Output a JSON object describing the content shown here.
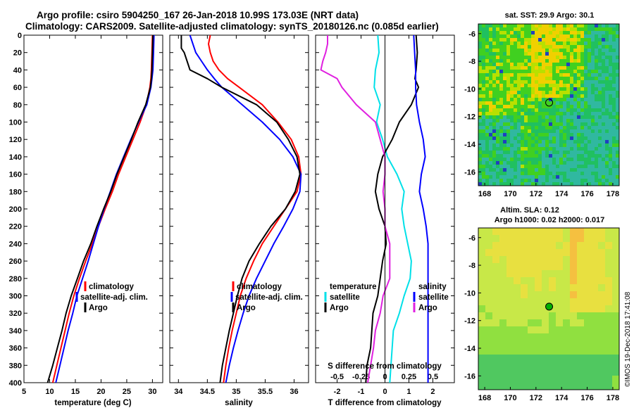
{
  "header": {
    "title_line1": "Argo profile: csiro 5904250_167 26-Jan-2018 10.99S 173.03E (NRT data)",
    "title_line2": "Climatology: CARS2009. Satellite-adjusted climatology: synTS_20180126.nc (0.085d earlier)"
  },
  "colors": {
    "climatology": "#ff0000",
    "satellite": "#0000ff",
    "argo": "#000000",
    "t_difference": "#00e0e8",
    "s_difference": "#e020e0",
    "marker": "#00b000"
  },
  "chart_data": [
    {
      "type": "line",
      "id": "temperature",
      "xlabel": "temperature (deg C)",
      "ylabel": "",
      "xlim": [
        5,
        32
      ],
      "ylim": [
        400,
        0
      ],
      "xticks": [
        "5",
        "10",
        "15",
        "20",
        "25",
        "30"
      ],
      "yticks": [
        "0",
        "20",
        "40",
        "60",
        "80",
        "100",
        "120",
        "140",
        "160",
        "180",
        "200",
        "220",
        "240",
        "260",
        "280",
        "300",
        "320",
        "340",
        "360",
        "380",
        "400"
      ],
      "series": [
        {
          "name": "climatology",
          "color": "#ff0000",
          "depth": [
            0,
            20,
            40,
            50,
            60,
            80,
            100,
            120,
            140,
            160,
            180,
            200,
            220,
            240,
            260,
            280,
            300,
            320,
            340,
            360,
            380,
            400
          ],
          "values": [
            30.0,
            29.9,
            29.8,
            29.7,
            29.5,
            28.8,
            27.6,
            26.2,
            24.8,
            23.4,
            22.2,
            20.8,
            19.5,
            18.3,
            17.0,
            15.8,
            14.7,
            13.8,
            13.0,
            12.2,
            11.4,
            10.6
          ]
        },
        {
          "name": "satellite-adj. clim.",
          "color": "#0000ff",
          "depth": [
            0,
            20,
            40,
            50,
            60,
            80,
            100,
            120,
            140,
            160,
            180,
            200,
            220,
            240,
            260,
            280,
            300,
            320,
            340,
            360,
            380,
            400
          ],
          "values": [
            30.3,
            30.2,
            30.1,
            29.9,
            29.7,
            28.9,
            27.3,
            25.8,
            24.4,
            23.0,
            21.8,
            20.6,
            19.5,
            18.5,
            17.5,
            16.4,
            15.3,
            14.5,
            13.6,
            12.8,
            12.0,
            11.2
          ]
        },
        {
          "name": "Argo",
          "color": "#000000",
          "depth": [
            0,
            20,
            40,
            50,
            60,
            80,
            100,
            120,
            140,
            160,
            180,
            200,
            220,
            240,
            260,
            280,
            300,
            320,
            340,
            360,
            380,
            400
          ],
          "values": [
            30.1,
            30.0,
            29.9,
            29.8,
            29.6,
            28.7,
            27.2,
            25.9,
            24.5,
            23.1,
            21.9,
            20.5,
            19.2,
            18.0,
            16.6,
            15.4,
            14.2,
            13.2,
            12.4,
            11.5,
            10.6,
            9.6
          ]
        }
      ],
      "legend": [
        "climatology",
        "satellite-adj. clim.",
        "Argo"
      ]
    },
    {
      "type": "line",
      "id": "salinity",
      "xlabel": "salinity",
      "ylabel": "",
      "xlim": [
        33.85,
        36.25
      ],
      "ylim": [
        400,
        0
      ],
      "xticks": [
        "34",
        "34.5",
        "35",
        "35.5",
        "36"
      ],
      "series": [
        {
          "name": "climatology",
          "color": "#ff0000",
          "depth": [
            0,
            10,
            20,
            30,
            40,
            50,
            60,
            80,
            100,
            120,
            140,
            160,
            180,
            200,
            220,
            240,
            260,
            280,
            300,
            320,
            340,
            360,
            380,
            400
          ],
          "values": [
            34.55,
            34.52,
            34.55,
            34.6,
            34.7,
            34.85,
            35.05,
            35.45,
            35.72,
            35.95,
            36.08,
            36.12,
            36.05,
            35.85,
            35.65,
            35.45,
            35.3,
            35.17,
            35.07,
            35.0,
            34.93,
            34.87,
            34.82,
            34.78
          ]
        },
        {
          "name": "satellite-adj. clim.",
          "color": "#0000ff",
          "depth": [
            0,
            10,
            20,
            30,
            40,
            50,
            60,
            80,
            100,
            120,
            140,
            160,
            180,
            200,
            220,
            240,
            260,
            280,
            300,
            320,
            340,
            360,
            380,
            400
          ],
          "values": [
            34.2,
            34.25,
            34.3,
            34.4,
            34.5,
            34.62,
            34.75,
            35.1,
            35.45,
            35.75,
            35.98,
            36.12,
            36.1,
            35.98,
            35.82,
            35.65,
            35.5,
            35.35,
            35.22,
            35.12,
            35.03,
            34.95,
            34.88,
            34.82
          ]
        },
        {
          "name": "Argo",
          "color": "#000000",
          "depth": [
            0,
            15,
            20,
            30,
            40,
            50,
            60,
            80,
            100,
            120,
            140,
            160,
            180,
            200,
            220,
            240,
            260,
            280,
            300,
            320,
            340,
            360,
            380,
            400
          ],
          "values": [
            34.05,
            34.05,
            34.1,
            34.15,
            34.2,
            34.5,
            34.75,
            35.35,
            35.7,
            35.9,
            36.05,
            36.1,
            36.02,
            35.85,
            35.6,
            35.4,
            35.22,
            35.1,
            35.02,
            34.95,
            34.88,
            34.82,
            34.76,
            34.72
          ]
        }
      ],
      "legend": [
        "climatology",
        "satellite-adj. clim.",
        "Argo"
      ]
    },
    {
      "type": "line",
      "id": "differences",
      "xlabel": "T difference from climatology",
      "top_label": "S difference from climatology",
      "ylabel": "",
      "xlim": [
        -2.9,
        2.9
      ],
      "s_xlim": [
        -0.725,
        0.725
      ],
      "ylim": [
        400,
        0
      ],
      "xticks": [
        "-2",
        "-1",
        "0",
        "1",
        "2"
      ],
      "s_xticks": [
        "-0.5",
        "-0.25",
        "0",
        "0.25",
        "0.5"
      ],
      "series": [
        {
          "name": "temperature satellite",
          "color": "#00e0e8",
          "kind": "T",
          "depth": [
            0,
            20,
            40,
            60,
            80,
            100,
            120,
            140,
            160,
            180,
            200,
            220,
            240,
            260,
            280,
            300,
            320,
            340,
            360,
            380,
            400
          ],
          "values": [
            -0.3,
            -0.25,
            -0.4,
            -0.45,
            -0.2,
            -0.35,
            -0.1,
            0.1,
            0.5,
            0.8,
            0.7,
            0.8,
            0.95,
            1.1,
            1.05,
            0.8,
            0.6,
            0.35,
            0.3,
            0.25,
            0.2
          ]
        },
        {
          "name": "temperature Argo",
          "color": "#000000",
          "kind": "T",
          "depth": [
            0,
            20,
            40,
            50,
            60,
            80,
            100,
            120,
            140,
            160,
            180,
            200,
            220,
            240,
            260,
            280,
            300,
            320,
            340,
            360,
            380,
            400
          ],
          "values": [
            1.3,
            1.35,
            1.3,
            1.25,
            1.4,
            1.1,
            0.6,
            0.3,
            -0.1,
            -0.3,
            -0.4,
            -0.25,
            0.0,
            0.05,
            -0.1,
            -0.2,
            -0.3,
            -0.5,
            -0.55,
            -0.6,
            -0.75,
            -0.8
          ]
        },
        {
          "name": "salinity satellite",
          "color": "#0000ff",
          "kind": "S",
          "depth": [
            0,
            20,
            40,
            60,
            80,
            100,
            120,
            140,
            160,
            180,
            200,
            220,
            240,
            260,
            280,
            300,
            320,
            340,
            360,
            380,
            400
          ],
          "values": [
            0.3,
            0.31,
            0.32,
            0.32,
            0.33,
            0.36,
            0.4,
            0.42,
            0.38,
            0.36,
            0.4,
            0.43,
            0.45,
            0.45,
            0.45,
            0.45,
            0.45,
            0.45,
            0.45,
            0.45,
            0.45
          ]
        },
        {
          "name": "salinity Argo",
          "color": "#e020e0",
          "kind": "S",
          "depth": [
            0,
            10,
            20,
            30,
            40,
            50,
            60,
            80,
            100,
            120,
            140,
            160,
            180,
            200,
            220,
            240,
            260,
            280,
            300,
            320,
            340,
            360,
            380,
            400
          ],
          "values": [
            -0.6,
            -0.6,
            -0.62,
            -0.65,
            -0.67,
            -0.5,
            -0.45,
            -0.3,
            -0.1,
            -0.05,
            0.0,
            0.0,
            -0.02,
            0.0,
            0.0,
            0.05,
            0.05,
            0.05,
            -0.02,
            -0.05,
            -0.1,
            -0.12,
            -0.15,
            -0.18
          ]
        }
      ],
      "legend_temperature": {
        "title": "temperature",
        "satellite": "satellite",
        "argo": "Argo"
      },
      "legend_salinity": {
        "title": "salinity",
        "satellite": "satellite",
        "argo": "Argo"
      }
    },
    {
      "type": "heatmap",
      "id": "sst_map",
      "title": "sat. SST: 29.9 Argo: 30.1",
      "xlim": [
        167.5,
        178.5
      ],
      "ylim": [
        -17,
        -5.3
      ],
      "xticks": [
        "168",
        "170",
        "172",
        "174",
        "176",
        "178"
      ],
      "yticks": [
        "-6",
        "-8",
        "-10",
        "-12",
        "-14",
        "-16"
      ],
      "argo_position": {
        "lon": 173.03,
        "lat": -10.99
      }
    },
    {
      "type": "heatmap",
      "id": "sla_map",
      "title_line1": "Altim. SLA: 0.12",
      "title_line2": "Argo h1000: 0.02 h2000: 0.017",
      "xlim": [
        167.5,
        178.5
      ],
      "ylim": [
        -17,
        -5.3
      ],
      "xticks": [
        "168",
        "170",
        "172",
        "174",
        "176",
        "178"
      ],
      "yticks": [
        "-6",
        "-8",
        "-10",
        "-12",
        "-14",
        "-16"
      ],
      "argo_position": {
        "lon": 173.03,
        "lat": -10.99
      }
    }
  ],
  "stamp": "©IMOS 19-Dec-2018 17:41:08"
}
